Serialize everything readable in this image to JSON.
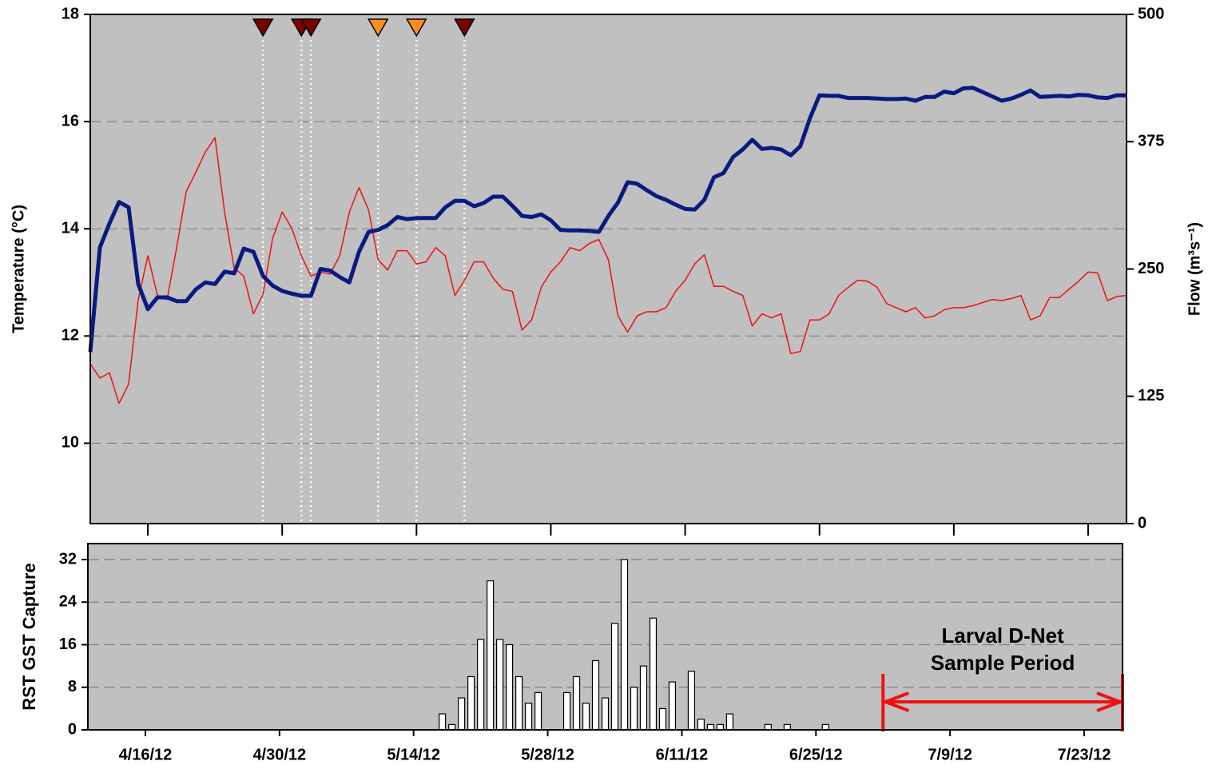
{
  "chart_data": [
    {
      "type": "line",
      "ylabel": "Temperature (°C)",
      "y2label": "Flow (m³s⁻¹)",
      "xlim": [
        "4/10/12",
        "7/27/12"
      ],
      "xticks": [
        "4/16/12",
        "4/30/12",
        "5/14/12",
        "5/28/12",
        "6/11/12",
        "6/25/12",
        "7/9/12",
        "7/23/12"
      ],
      "ylim": [
        8.5,
        18
      ],
      "yticks": [
        10,
        12,
        14,
        16,
        18
      ],
      "y2lim": [
        0,
        500
      ],
      "y2ticks": [
        0,
        125,
        250,
        375,
        500
      ],
      "grid": true,
      "x": [
        "4/10/12",
        "4/11/12",
        "4/12/12",
        "4/13/12",
        "4/14/12",
        "4/15/12",
        "4/16/12",
        "4/17/12",
        "4/18/12",
        "4/19/12",
        "4/20/12",
        "4/21/12",
        "4/22/12",
        "4/23/12",
        "4/24/12",
        "4/25/12",
        "4/26/12",
        "4/27/12",
        "4/28/12",
        "4/29/12",
        "4/30/12",
        "5/1/12",
        "5/2/12",
        "5/3/12",
        "5/4/12",
        "5/5/12",
        "5/6/12",
        "5/7/12",
        "5/8/12",
        "5/9/12",
        "5/10/12",
        "5/11/12",
        "5/12/12",
        "5/13/12",
        "5/14/12",
        "5/15/12",
        "5/16/12",
        "5/17/12",
        "5/18/12",
        "5/19/12",
        "5/20/12",
        "5/21/12",
        "5/22/12",
        "5/23/12",
        "5/24/12",
        "5/25/12",
        "5/26/12",
        "5/27/12",
        "5/28/12",
        "5/29/12",
        "5/30/12",
        "5/31/12",
        "6/1/12",
        "6/2/12",
        "6/3/12",
        "6/4/12",
        "6/5/12",
        "6/6/12",
        "6/7/12",
        "6/8/12",
        "6/9/12",
        "6/10/12",
        "6/11/12",
        "6/12/12",
        "6/13/12",
        "6/14/12",
        "6/15/12",
        "6/16/12",
        "6/17/12",
        "6/18/12",
        "6/19/12",
        "6/20/12",
        "6/21/12",
        "6/22/12",
        "6/23/12",
        "6/24/12",
        "6/25/12",
        "6/26/12",
        "6/27/12",
        "6/28/12",
        "6/29/12",
        "6/30/12",
        "7/1/12",
        "7/2/12",
        "7/3/12",
        "7/4/12",
        "7/5/12",
        "7/6/12",
        "7/7/12",
        "7/8/12",
        "7/9/12",
        "7/10/12",
        "7/11/12",
        "7/12/12",
        "7/13/12",
        "7/14/12",
        "7/15/12",
        "7/16/12",
        "7/17/12",
        "7/18/12",
        "7/19/12",
        "7/20/12",
        "7/21/12",
        "7/22/12",
        "7/23/12",
        "7/24/12",
        "7/25/12",
        "7/26/12",
        "7/27/12"
      ],
      "series": [
        {
          "color": "#ee1111",
          "axis": "y2",
          "width": 1.5,
          "values": [
            157,
            143,
            148,
            118,
            137,
            220,
            263,
            224,
            220,
            271,
            326,
            345,
            365,
            379,
            306,
            251,
            243,
            206,
            225,
            280,
            306,
            290,
            263,
            243,
            247,
            245,
            263,
            306,
            330,
            308,
            259,
            249,
            268,
            268,
            255,
            257,
            271,
            263,
            224,
            239,
            257,
            257,
            241,
            230,
            228,
            190,
            200,
            232,
            247,
            257,
            271,
            268,
            275,
            279,
            259,
            204,
            188,
            204,
            208,
            208,
            212,
            228,
            239,
            255,
            264,
            233,
            233,
            228,
            224,
            194,
            206,
            202,
            206,
            167,
            169,
            200,
            200,
            206,
            224,
            232,
            239,
            238,
            232,
            216,
            212,
            208,
            212,
            202,
            204,
            210,
            212,
            212,
            214,
            217,
            220,
            219,
            221,
            224,
            200,
            204,
            222,
            222,
            230,
            238,
            247,
            246,
            219,
            223,
            224
          ]
        },
        {
          "color": "#0a1a80",
          "axis": "y",
          "width": 5,
          "values": [
            11.7,
            13.65,
            14.1,
            14.5,
            14.4,
            12.97,
            12.5,
            12.72,
            12.72,
            12.65,
            12.65,
            12.87,
            13.0,
            12.97,
            13.2,
            13.17,
            13.63,
            13.57,
            13.12,
            12.94,
            12.84,
            12.79,
            12.75,
            12.75,
            13.25,
            13.22,
            13.1,
            13.0,
            13.57,
            13.94,
            13.98,
            14.07,
            14.22,
            14.18,
            14.2,
            14.2,
            14.2,
            14.4,
            14.52,
            14.52,
            14.42,
            14.48,
            14.6,
            14.6,
            14.43,
            14.24,
            14.22,
            14.27,
            14.16,
            13.98,
            13.97,
            13.97,
            13.96,
            13.94,
            14.24,
            14.49,
            14.87,
            14.84,
            14.72,
            14.61,
            14.54,
            14.45,
            14.37,
            14.36,
            14.54,
            14.96,
            15.04,
            15.34,
            15.48,
            15.66,
            15.49,
            15.51,
            15.48,
            15.37,
            15.54,
            16.06,
            16.49,
            16.48,
            16.48,
            16.44,
            16.44,
            16.44,
            16.43,
            16.42,
            16.42,
            16.43,
            16.39,
            16.46,
            16.46,
            16.56,
            16.53,
            16.62,
            16.63,
            16.55,
            16.47,
            16.39,
            16.43,
            16.5,
            16.58,
            16.46,
            16.47,
            16.48,
            16.47,
            16.5,
            16.49,
            16.45,
            16.44,
            16.49,
            16.49
          ]
        }
      ],
      "markers": [
        {
          "x": "4/28/12",
          "color": "#7a0000"
        },
        {
          "x": "5/2/12",
          "color": "#7a0000"
        },
        {
          "x": "5/3/12",
          "color": "#7a0000"
        },
        {
          "x": "5/10/12",
          "color": "#ff8c1a"
        },
        {
          "x": "5/14/12",
          "color": "#ff8c1a"
        },
        {
          "x": "5/19/12",
          "color": "#7a0000"
        }
      ]
    },
    {
      "type": "bar",
      "ylabel": "RST GST Capture",
      "xlim": [
        "4/10/12",
        "7/27/12"
      ],
      "xticks": [
        "4/16/12",
        "4/30/12",
        "5/14/12",
        "5/28/12",
        "6/11/12",
        "6/25/12",
        "7/9/12",
        "7/23/12"
      ],
      "ylim": [
        0,
        35
      ],
      "yticks": [
        0,
        8,
        16,
        24,
        32
      ],
      "grid": true,
      "color": "#ffffff",
      "x": [
        "5/17/12",
        "5/18/12",
        "5/19/12",
        "5/20/12",
        "5/21/12",
        "5/22/12",
        "5/23/12",
        "5/24/12",
        "5/25/12",
        "5/26/12",
        "5/27/12",
        "5/30/12",
        "5/31/12",
        "6/1/12",
        "6/2/12",
        "6/3/12",
        "6/4/12",
        "6/5/12",
        "6/6/12",
        "6/7/12",
        "6/8/12",
        "6/9/12",
        "6/10/12",
        "6/12/12",
        "6/13/12",
        "6/14/12",
        "6/15/12",
        "6/16/12",
        "6/20/12",
        "6/22/12",
        "6/26/12"
      ],
      "values": [
        3,
        1,
        6,
        10,
        17,
        28,
        17,
        16,
        10,
        5,
        7,
        7,
        10,
        5,
        13,
        6,
        20,
        32,
        8,
        12,
        21,
        4,
        9,
        11,
        2,
        1,
        1,
        3,
        1,
        1,
        1
      ],
      "annotation": {
        "text": [
          "Larval D-Net",
          "Sample Period"
        ],
        "color": "#ee1111",
        "start": "7/2/12",
        "end": "7/27/12"
      }
    }
  ]
}
